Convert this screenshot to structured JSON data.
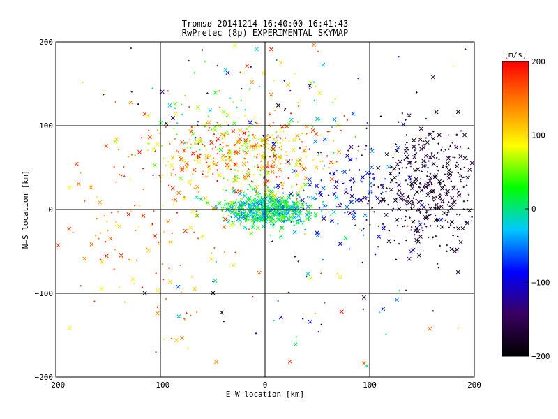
{
  "chart_data": {
    "type": "scatter",
    "title": "Tromsø 20141214 16:40:00–16:41:43",
    "subtitle": "RwPretec (8p) EXPERIMENTAL SKYMAP",
    "xlabel": "E–W location [km]",
    "ylabel": "N–S location [km]",
    "xlim": [
      -200,
      200
    ],
    "ylim": [
      -200,
      200
    ],
    "xticks": [
      -200,
      -100,
      0,
      100,
      200
    ],
    "yticks": [
      -200,
      -100,
      0,
      100,
      200
    ],
    "xtick_labels": [
      "−200",
      "−100",
      "0",
      "100",
      "200"
    ],
    "ytick_labels": [
      "−200",
      "−100",
      "0",
      "100",
      "200"
    ],
    "grid": true,
    "markers": [
      "x",
      "+"
    ],
    "colorbar": {
      "label": "[m/s]",
      "range": [
        -200,
        200
      ],
      "ticks": [
        200,
        100,
        0,
        -100,
        -200
      ],
      "tick_labels": [
        "200",
        "100",
        "0",
        "−100",
        "−200"
      ],
      "colors": [
        "#000000",
        "#3a0060",
        "#0000ff",
        "#00c8ff",
        "#00ff00",
        "#ffff00",
        "#ff8000",
        "#ff0000"
      ]
    },
    "clusters": [
      {
        "desc": "central dense cluster (mixed, green/cyan dominant)",
        "center": [
          5,
          0
        ],
        "spread": [
          22,
          10
        ],
        "velocity_range": [
          -60,
          60
        ],
        "count": 650
      },
      {
        "desc": "north-central band (red/orange/yellow)",
        "center": [
          -20,
          65
        ],
        "spread": [
          45,
          25
        ],
        "velocity_range": [
          40,
          200
        ],
        "count": 450
      },
      {
        "desc": "eastern black/purple cluster",
        "center": [
          160,
          25
        ],
        "spread": [
          28,
          40
        ],
        "velocity_range": [
          -200,
          -150
        ],
        "count": 420
      },
      {
        "desc": "western sparse scatter (red)",
        "center": [
          -110,
          -20
        ],
        "spread": [
          45,
          60
        ],
        "velocity_range": [
          80,
          200
        ],
        "count": 150
      },
      {
        "desc": "upper scattered points",
        "center": [
          -10,
          130
        ],
        "spread": [
          70,
          40
        ],
        "velocity_range": [
          -200,
          200
        ],
        "count": 120
      },
      {
        "desc": "lower sparse points",
        "center": [
          20,
          -100
        ],
        "spread": [
          70,
          50
        ],
        "velocity_range": [
          -200,
          200
        ],
        "count": 60
      },
      {
        "desc": "eastern middle cyan/blue",
        "center": [
          90,
          20
        ],
        "spread": [
          30,
          35
        ],
        "velocity_range": [
          -140,
          -40
        ],
        "count": 150
      }
    ]
  }
}
